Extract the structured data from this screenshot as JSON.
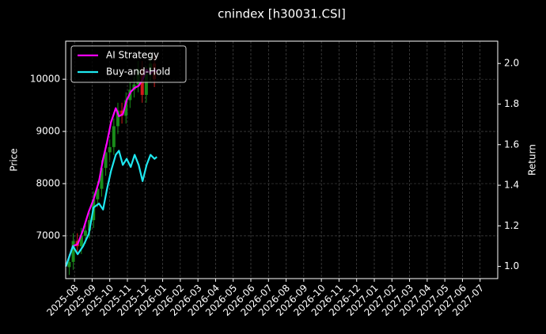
{
  "chart_data": {
    "type": "line",
    "title": "cnindex [h30031.CSI]",
    "ylabel": "Price",
    "y2label": "Return",
    "x": [
      -0.49,
      -0.09,
      0.18,
      0.49,
      0.81,
      1.08,
      1.39,
      1.62,
      1.84,
      2.07,
      2.34,
      2.52,
      2.74,
      2.96,
      3.19,
      3.41,
      3.64,
      3.86,
      4.09,
      4.31,
      4.54,
      4.67
    ],
    "series": [
      {
        "name": "AI Strategy",
        "color": "#ff00ff",
        "axis": "y2",
        "values": [
          1.0,
          1.1,
          1.11,
          1.18,
          1.27,
          1.33,
          1.42,
          1.53,
          1.61,
          1.71,
          1.78,
          1.74,
          1.75,
          1.82,
          1.86,
          1.88,
          1.89,
          1.92,
          1.97,
          1.95,
          1.97,
          1.96
        ]
      },
      {
        "name": "Buy-and-Hold",
        "color": "#1ee8f0",
        "axis": "y2",
        "values": [
          1.0,
          1.1,
          1.06,
          1.1,
          1.16,
          1.29,
          1.31,
          1.28,
          1.38,
          1.47,
          1.55,
          1.57,
          1.5,
          1.53,
          1.49,
          1.55,
          1.5,
          1.42,
          1.5,
          1.55,
          1.53,
          1.54
        ]
      }
    ],
    "candles": {
      "x": [
        -0.3,
        -0.07,
        0.16,
        0.39,
        0.62,
        0.85,
        1.08,
        1.31,
        1.54,
        1.77,
        2.0,
        2.23,
        2.46,
        2.69,
        2.92,
        3.15,
        3.38,
        3.61,
        3.84,
        4.07,
        4.3,
        4.53
      ],
      "open": [
        6400,
        6500,
        6900,
        6800,
        7000,
        7100,
        7300,
        7700,
        7900,
        8300,
        8600,
        8700,
        9100,
        9400,
        9300,
        9600,
        9800,
        9900,
        10200,
        9700,
        10100,
        10300
      ],
      "high": [
        6650,
        7050,
        7050,
        7150,
        7250,
        7450,
        7850,
        8050,
        8450,
        8750,
        8850,
        9250,
        9550,
        9550,
        9750,
        9950,
        10050,
        10350,
        10350,
        10250,
        10450,
        10450
      ],
      "low": [
        6250,
        6350,
        6650,
        6650,
        6850,
        6950,
        7150,
        7550,
        7750,
        8150,
        8450,
        8550,
        8950,
        9150,
        9150,
        9450,
        9650,
        9750,
        9550,
        9550,
        9950,
        9850
      ],
      "close": [
        6500,
        6900,
        6800,
        7000,
        7100,
        7300,
        7700,
        7900,
        8300,
        8600,
        8700,
        9100,
        9400,
        9300,
        9600,
        9800,
        9900,
        10200,
        9700,
        10100,
        10300,
        10000
      ],
      "up_color": "#1a8c1a",
      "down_color": "#d41a1a"
    },
    "xlim": [
      -0.5,
      24
    ],
    "xticks": [
      {
        "value": 0,
        "label": "2025-08"
      },
      {
        "value": 1,
        "label": "2025-09"
      },
      {
        "value": 2,
        "label": "2025-10"
      },
      {
        "value": 3,
        "label": "2025-11"
      },
      {
        "value": 4,
        "label": "2025-12"
      },
      {
        "value": 5,
        "label": "2026-01"
      },
      {
        "value": 6,
        "label": "2026-02"
      },
      {
        "value": 7,
        "label": "2026-03"
      },
      {
        "value": 8,
        "label": "2026-04"
      },
      {
        "value": 9,
        "label": "2026-05"
      },
      {
        "value": 10,
        "label": "2026-06"
      },
      {
        "value": 11,
        "label": "2026-07"
      },
      {
        "value": 12,
        "label": "2026-08"
      },
      {
        "value": 13,
        "label": "2026-09"
      },
      {
        "value": 14,
        "label": "2026-10"
      },
      {
        "value": 15,
        "label": "2026-11"
      },
      {
        "value": 16,
        "label": "2026-12"
      },
      {
        "value": 17,
        "label": "2027-01"
      },
      {
        "value": 18,
        "label": "2027-02"
      },
      {
        "value": 19,
        "label": "2027-03"
      },
      {
        "value": 20,
        "label": "2027-04"
      },
      {
        "value": 21,
        "label": "2027-05"
      },
      {
        "value": 22,
        "label": "2027-06"
      },
      {
        "value": 23,
        "label": "2027-07"
      }
    ],
    "ylim": [
      6180,
      10730
    ],
    "yticks": [
      7000,
      8000,
      9000,
      10000
    ],
    "y2lim": [
      0.94,
      2.11
    ],
    "y2ticks": [
      {
        "value": 1.0,
        "label": "1.0"
      },
      1.2,
      1.4,
      1.6,
      1.8,
      {
        "value": 2.0,
        "label": "2.0"
      }
    ],
    "grid": true,
    "legend": "upper left"
  }
}
